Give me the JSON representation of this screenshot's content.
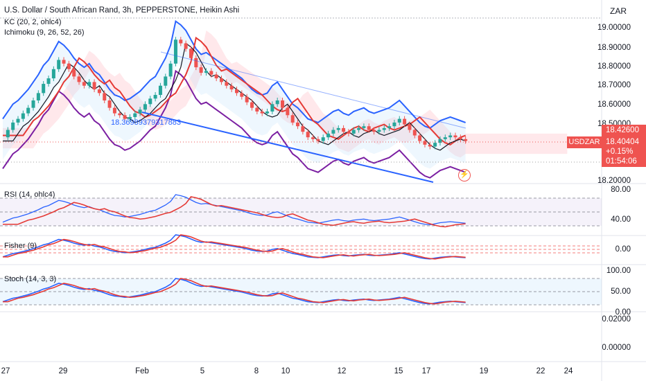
{
  "header": {
    "title": "U.S. Dollar / South African Rand, 3h, PEPPERSTONE, Heikin Ashi",
    "indicator1": "KC (20, 2, ohlc4)",
    "indicator2": "Ichimoku (9, 26, 52, 26)",
    "currency": "ZAR"
  },
  "price_axis": {
    "ticks": [
      "19.00000",
      "18.90000",
      "18.80000",
      "18.70000",
      "18.60000",
      "18.50000",
      "18.20000"
    ],
    "last_price_tag": "18.42600",
    "symbol_tag": "USDZAR",
    "current_price": "18.40404",
    "change": "+0.15%",
    "countdown": "01:54:06"
  },
  "annotation": "18.3698937931788​3",
  "panes": {
    "rsi": {
      "label": "RSI (14, ohlc4)",
      "ticks": [
        "80.00",
        "40.00"
      ]
    },
    "fisher": {
      "label": "Fisher (9)",
      "ticks": [
        "0.00"
      ]
    },
    "stoch": {
      "label": "Stoch (14, 3, 3)",
      "ticks": [
        "100.00",
        "50.00",
        "0.00"
      ]
    },
    "extra": {
      "ticks": [
        "0.02000",
        "0.00000"
      ]
    }
  },
  "time_axis": [
    "27",
    "29",
    "Feb",
    "5",
    "8",
    "10",
    "12",
    "15",
    "17",
    "19",
    "22",
    "24"
  ],
  "colors": {
    "up": "#26a69a",
    "down": "#ef5350",
    "kc": "#2962ff",
    "midline": "#131722",
    "ich_base": "#e53935",
    "ich_lag": "#7b1fa2",
    "cloud_up": "#b2dfdb",
    "cloud_down": "#ffcdd2",
    "rsi": "#2962ff",
    "rsi_ma": "#e53935"
  },
  "chart_data": {
    "type": "candlestick",
    "title": "U.S. Dollar / South African Rand, 3h, PEPPERSTONE, Heikin Ashi",
    "y_range": [
      18.18,
      19.06
    ],
    "close_series": [
      18.42,
      18.46,
      18.5,
      18.52,
      18.55,
      18.58,
      18.62,
      18.66,
      18.71,
      18.74,
      18.79,
      18.84,
      18.82,
      18.79,
      18.75,
      18.72,
      18.7,
      18.72,
      18.68,
      18.66,
      18.62,
      18.58,
      18.55,
      18.54,
      18.52,
      18.53,
      18.55,
      18.57,
      18.6,
      18.63,
      18.65,
      18.7,
      18.75,
      18.82,
      18.95,
      18.93,
      18.9,
      18.85,
      18.8,
      18.77,
      18.78,
      18.76,
      18.74,
      18.72,
      18.7,
      18.68,
      18.66,
      18.64,
      18.61,
      18.58,
      18.56,
      18.55,
      18.56,
      18.6,
      18.62,
      18.58,
      18.54,
      18.5,
      18.48,
      18.45,
      18.42,
      18.41,
      18.4,
      18.42,
      18.44,
      18.46,
      18.47,
      18.45,
      18.44,
      18.46,
      18.47,
      18.48,
      18.46,
      18.45,
      18.46,
      18.47,
      18.48,
      18.5,
      18.52,
      18.49,
      18.46,
      18.43,
      18.4,
      18.38,
      18.37,
      18.39,
      18.41,
      18.42,
      18.43,
      18.42,
      18.41,
      18.4
    ]
  }
}
